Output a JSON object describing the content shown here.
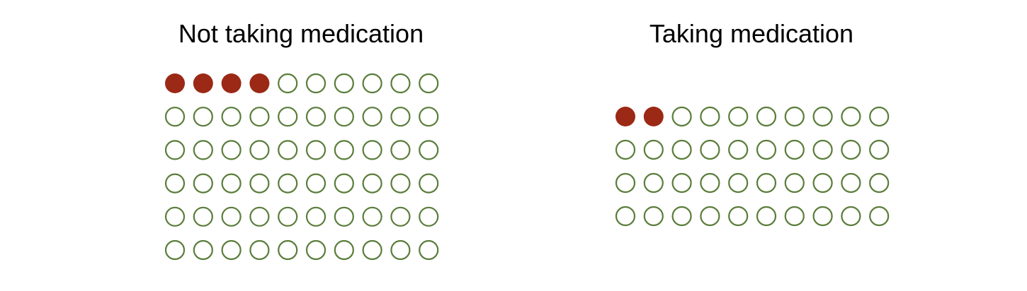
{
  "colors": {
    "affected": "#9b2915",
    "unaffected": "#5a7d3a",
    "background": "#ffffff",
    "text": "#000000"
  },
  "chart_data": [
    {
      "type": "icon-array",
      "title": "Not taking medication",
      "total": 60,
      "affected": 4,
      "columns": 10,
      "rows": 6
    },
    {
      "type": "icon-array",
      "title": "Taking medication",
      "total": 40,
      "affected": 2,
      "columns": 10,
      "rows": 4
    }
  ]
}
